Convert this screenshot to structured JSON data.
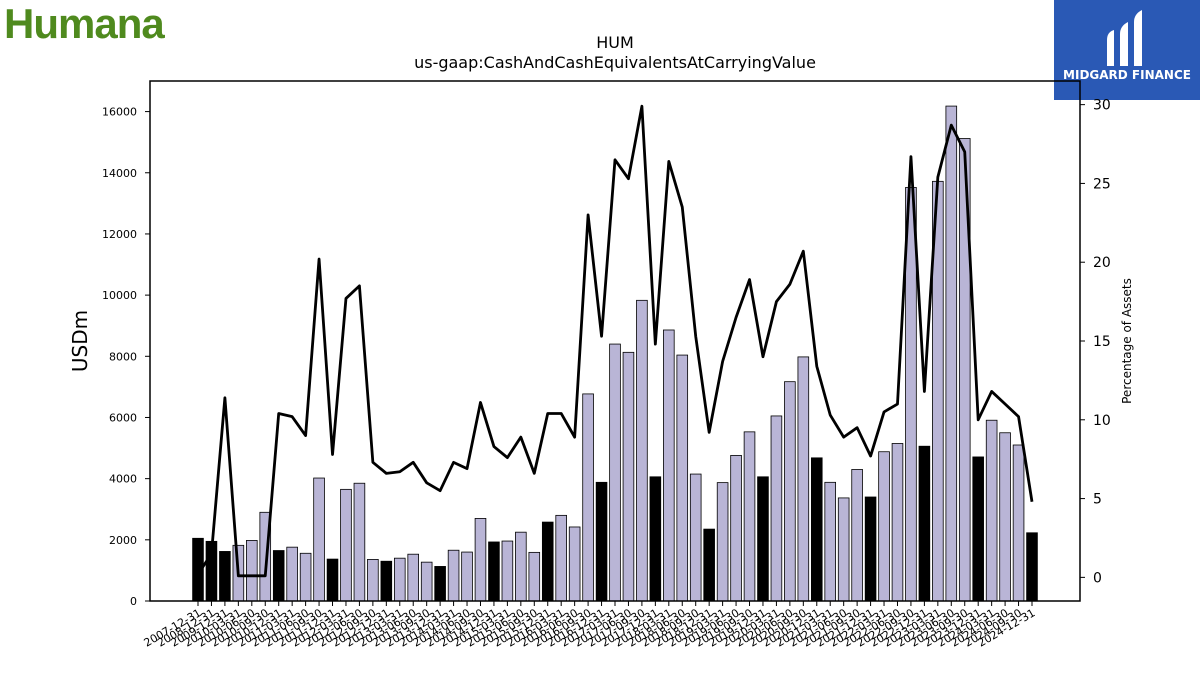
{
  "brand": {
    "text": "Humana",
    "color": "#4f8a1e"
  },
  "logo": {
    "text": "MIDGARD FINANCE",
    "bg_color": "#2a59b5"
  },
  "chart_data": {
    "type": "bar",
    "title": "HUM",
    "subtitle": "us-gaap:CashAndCashEquivalentsAtCarryingValue",
    "ylabel": "USDm",
    "y2label": "Percentage of Assets",
    "ylim": [
      0,
      17000
    ],
    "y2lim": [
      -1.5,
      31.5
    ],
    "yticks": [
      0,
      2000,
      4000,
      6000,
      8000,
      10000,
      12000,
      14000,
      16000
    ],
    "y2ticks": [
      0,
      5,
      10,
      15,
      20,
      25,
      30
    ],
    "colors": {
      "annual": "#000000",
      "quarterly": "#b9b5d6",
      "line": "#000000"
    },
    "categories": [
      "2007-12-31",
      "2008-12-31",
      "2009-12-31",
      "2010-03-31",
      "2010-06-30",
      "2010-09-30",
      "2010-12-31",
      "2011-03-31",
      "2011-06-30",
      "2011-09-30",
      "2011-12-31",
      "2012-03-31",
      "2012-06-30",
      "2012-09-30",
      "2012-12-31",
      "2013-03-31",
      "2013-06-30",
      "2013-09-30",
      "2013-12-31",
      "2014-03-31",
      "2014-06-30",
      "2014-09-30",
      "2014-12-31",
      "2015-03-31",
      "2015-06-30",
      "2015-09-30",
      "2015-12-31",
      "2016-03-31",
      "2016-06-30",
      "2016-09-30",
      "2016-12-31",
      "2017-03-31",
      "2017-06-30",
      "2017-09-30",
      "2017-12-31",
      "2018-03-31",
      "2018-06-30",
      "2018-09-30",
      "2018-12-31",
      "2019-03-31",
      "2019-06-30",
      "2019-09-30",
      "2019-12-31",
      "2020-03-31",
      "2020-06-30",
      "2020-09-30",
      "2020-12-31",
      "2021-03-31",
      "2021-06-30",
      "2021-09-30",
      "2021-12-31",
      "2022-03-31",
      "2022-06-30",
      "2022-09-30",
      "2022-12-31",
      "2023-03-31",
      "2023-06-30",
      "2023-09-30",
      "2023-12-31",
      "2024-03-31",
      "2024-06-30",
      "2024-09-30",
      "2024-12-31"
    ],
    "values": [
      2050,
      1950,
      1620,
      1820,
      1980,
      2900,
      1650,
      1760,
      1560,
      4020,
      1370,
      3650,
      3850,
      1360,
      1300,
      1400,
      1530,
      1270,
      1130,
      1660,
      1600,
      2700,
      1930,
      1960,
      2250,
      1590,
      2580,
      2800,
      2420,
      6770,
      3880,
      8400,
      8130,
      9830,
      4060,
      8860,
      8040,
      4150,
      2350,
      3870,
      4760,
      5530,
      4060,
      6050,
      7170,
      7980,
      4680,
      3880,
      3370,
      4300,
      3400,
      4880,
      5150,
      13520,
      5060,
      13720,
      16180,
      15120,
      4710,
      5910,
      5500,
      5100,
      2230
    ],
    "annual": [
      true,
      true,
      true,
      false,
      false,
      false,
      true,
      false,
      false,
      false,
      true,
      false,
      false,
      false,
      true,
      false,
      false,
      false,
      true,
      false,
      false,
      false,
      true,
      false,
      false,
      false,
      true,
      false,
      false,
      false,
      true,
      false,
      false,
      false,
      true,
      false,
      false,
      false,
      true,
      false,
      false,
      false,
      true,
      false,
      false,
      false,
      true,
      false,
      false,
      false,
      true,
      false,
      false,
      false,
      true,
      false,
      false,
      false,
      true,
      false,
      false,
      false,
      true
    ],
    "pct_of_assets": [
      0.2,
      1.5,
      11.4,
      0.1,
      0.1,
      0.1,
      10.4,
      10.2,
      9.0,
      20.2,
      7.8,
      17.7,
      18.5,
      7.3,
      6.6,
      6.7,
      7.3,
      6.0,
      5.5,
      7.3,
      6.9,
      11.1,
      8.3,
      7.6,
      8.9,
      6.6,
      10.4,
      10.4,
      8.9,
      23.0,
      15.3,
      26.5,
      25.3,
      29.9,
      14.8,
      26.4,
      23.5,
      15.3,
      9.2,
      13.7,
      16.5,
      18.9,
      14.0,
      17.5,
      18.6,
      20.7,
      13.4,
      10.3,
      8.9,
      9.5,
      7.7,
      10.5,
      11.0,
      26.7,
      11.8,
      25.4,
      28.7,
      27.0,
      10.0,
      11.8,
      11.0,
      10.2,
      4.8
    ]
  }
}
